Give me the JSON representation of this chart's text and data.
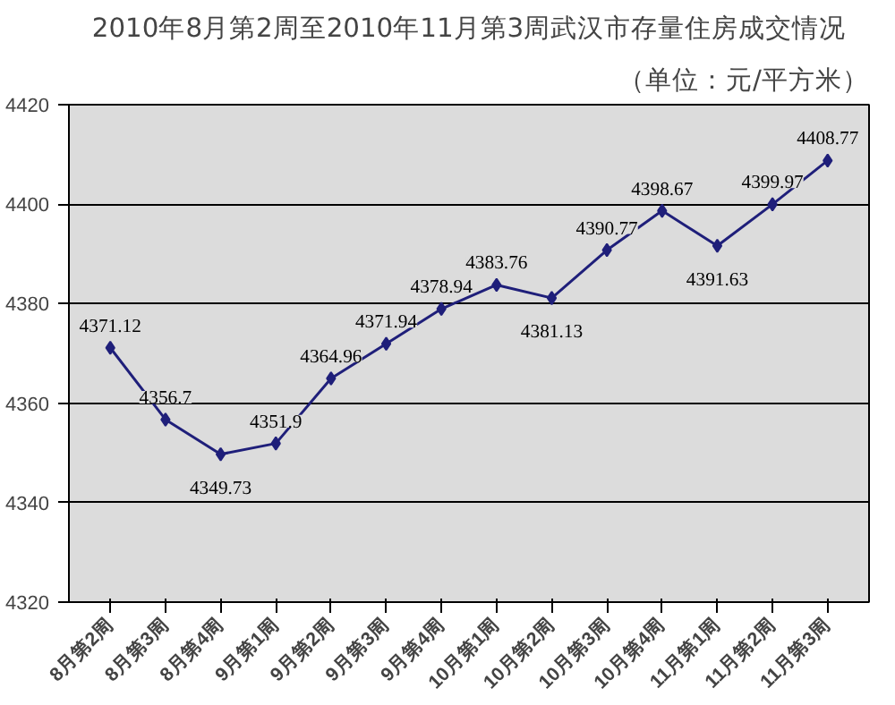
{
  "chart_data": {
    "type": "line",
    "title": "2010年8月第2周至2010年11月第3周武汉市存量住房成交情况",
    "subtitle": "（单位：元/平方米）",
    "categories": [
      "8月第2周",
      "8月第3周",
      "8月第4周",
      "9月第1周",
      "9月第2周",
      "9月第3周",
      "9月第4周",
      "10月第1周",
      "10月第2周",
      "10月第3周",
      "10月第4周",
      "11月第1周",
      "11月第2周",
      "11月第3周"
    ],
    "series": [
      {
        "color": "#1f1f7a",
        "values": [
          4371.12,
          4356.7,
          4349.73,
          4351.9,
          4364.96,
          4371.94,
          4378.94,
          4383.76,
          4381.13,
          4390.77,
          4398.67,
          4391.63,
          4399.97,
          4408.77
        ]
      }
    ],
    "ylim": [
      4320,
      4420
    ],
    "yticks": [
      4320,
      4340,
      4360,
      4380,
      4400,
      4420
    ],
    "grid": "y",
    "marker": "diamond",
    "line_style": "solid",
    "data_labels": true
  }
}
